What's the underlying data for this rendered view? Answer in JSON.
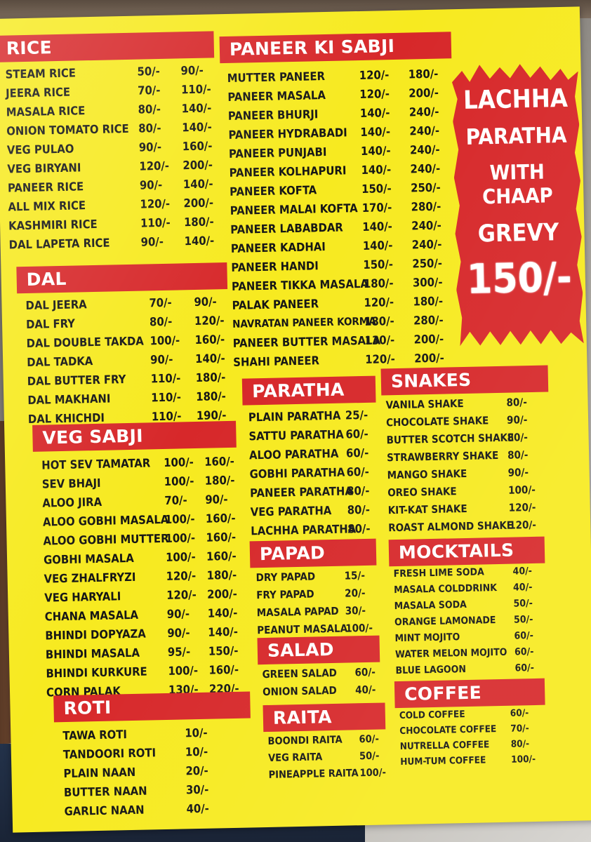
{
  "rice": {
    "title": "RICE",
    "items": [
      {
        "name": "STEAM RICE",
        "p1": "50/-",
        "p2": "90/-"
      },
      {
        "name": "JEERA RICE",
        "p1": "70/-",
        "p2": "110/-"
      },
      {
        "name": "MASALA RICE",
        "p1": "80/-",
        "p2": "140/-"
      },
      {
        "name": "ONION TOMATO RICE",
        "p1": "80/-",
        "p2": "140/-"
      },
      {
        "name": "VEG PULAO",
        "p1": "90/-",
        "p2": "160/-"
      },
      {
        "name": "VEG BIRYANI",
        "p1": "120/-",
        "p2": "200/-"
      },
      {
        "name": "PANEER RICE",
        "p1": "90/-",
        "p2": "140/-"
      },
      {
        "name": "ALL MIX RICE",
        "p1": "120/-",
        "p2": "200/-"
      },
      {
        "name": "KASHMIRI RICE",
        "p1": "110/-",
        "p2": "180/-"
      },
      {
        "name": "DAL LAPETA RICE",
        "p1": "90/-",
        "p2": "140/-"
      }
    ]
  },
  "dal": {
    "title": "DAL",
    "items": [
      {
        "name": "DAL JEERA",
        "p1": "70/-",
        "p2": "90/-"
      },
      {
        "name": "DAL FRY",
        "p1": "80/-",
        "p2": "120/-"
      },
      {
        "name": "DAL DOUBLE TAKDA",
        "p1": "100/-",
        "p2": "160/-"
      },
      {
        "name": "DAL TADKA",
        "p1": "90/-",
        "p2": "140/-"
      },
      {
        "name": "DAL BUTTER FRY",
        "p1": "110/-",
        "p2": "180/-"
      },
      {
        "name": "DAL MAKHANI",
        "p1": "110/-",
        "p2": "180/-"
      },
      {
        "name": "DAL KHICHDI",
        "p1": "110/-",
        "p2": "190/-"
      }
    ]
  },
  "veg_sabji": {
    "title": "VEG SABJI",
    "items": [
      {
        "name": "HOT SEV TAMATAR",
        "p1": "100/-",
        "p2": "160/-"
      },
      {
        "name": "SEV BHAJI",
        "p1": "100/-",
        "p2": "180/-"
      },
      {
        "name": "ALOO JIRA",
        "p1": "70/-",
        "p2": "90/-"
      },
      {
        "name": "ALOO GOBHI MASALA",
        "p1": "100/-",
        "p2": "160/-"
      },
      {
        "name": "ALOO GOBHI MUTTER",
        "p1": "100/-",
        "p2": "160/-"
      },
      {
        "name": "GOBHI MASALA",
        "p1": "100/-",
        "p2": "160/-"
      },
      {
        "name": "VEG ZHALFRYZI",
        "p1": "120/-",
        "p2": "180/-"
      },
      {
        "name": "VEG HARYALI",
        "p1": "120/-",
        "p2": "200/-"
      },
      {
        "name": "CHANA MASALA",
        "p1": "90/-",
        "p2": "140/-"
      },
      {
        "name": "BHINDI DOPYAZA",
        "p1": "90/-",
        "p2": "140/-"
      },
      {
        "name": "BHINDI MASALA",
        "p1": "95/-",
        "p2": "150/-"
      },
      {
        "name": "BHINDI KURKURE",
        "p1": "100/-",
        "p2": "160/-"
      },
      {
        "name": "CORN PALAK",
        "p1": "130/-",
        "p2": "220/-"
      }
    ]
  },
  "roti": {
    "title": "ROTI",
    "items": [
      {
        "name": "TAWA ROTI",
        "p1": "10/-"
      },
      {
        "name": "TANDOORI ROTI",
        "p1": "10/-"
      },
      {
        "name": "PLAIN NAAN",
        "p1": "20/-"
      },
      {
        "name": "BUTTER NAAN",
        "p1": "30/-"
      },
      {
        "name": "GARLIC NAAN",
        "p1": "40/-"
      }
    ]
  },
  "paneer": {
    "title": "PANEER KI SABJI",
    "items": [
      {
        "name": "MUTTER PANEER",
        "p1": "120/-",
        "p2": "180/-"
      },
      {
        "name": "PANEER MASALA",
        "p1": "120/-",
        "p2": "200/-"
      },
      {
        "name": "PANEER BHURJI",
        "p1": "140/-",
        "p2": "240/-"
      },
      {
        "name": "PANEER HYDRABADI",
        "p1": "140/-",
        "p2": "240/-"
      },
      {
        "name": "PANEER PUNJABI",
        "p1": "140/-",
        "p2": "240/-"
      },
      {
        "name": "PANEER KOLHAPURI",
        "p1": "140/-",
        "p2": "240/-"
      },
      {
        "name": "PANEER KOFTA",
        "p1": "150/-",
        "p2": "250/-"
      },
      {
        "name": "PANEER MALAI KOFTA",
        "p1": "170/-",
        "p2": "280/-"
      },
      {
        "name": "PANEER LABABDAR",
        "p1": "140/-",
        "p2": "240/-"
      },
      {
        "name": "PANEER KADHAI",
        "p1": "140/-",
        "p2": "240/-"
      },
      {
        "name": "PANEER HANDI",
        "p1": "150/-",
        "p2": "250/-"
      },
      {
        "name": "PANEER TIKKA MASALA",
        "p1": "180/-",
        "p2": "300/-"
      },
      {
        "name": "PALAK PANEER",
        "p1": "120/-",
        "p2": "180/-"
      },
      {
        "name": "NAVRATAN PANEER KORMA",
        "p1": "180/-",
        "p2": "280/-"
      },
      {
        "name": "PANEER BUTTER MASALA",
        "p1": "130/-",
        "p2": "200/-"
      },
      {
        "name": "SHAHI PANEER",
        "p1": "120/-",
        "p2": "200/-"
      }
    ]
  },
  "promo": {
    "line1": "LACHHA",
    "line2": "PARATHA",
    "line3": "WITH CHAAP",
    "line4": "GREVY",
    "price": "150/-"
  },
  "paratha": {
    "title": "PARATHA",
    "items": [
      {
        "name": "PLAIN PARATHA",
        "p1": "25/-"
      },
      {
        "name": "SATTU PARATHA",
        "p1": "60/-"
      },
      {
        "name": "ALOO PARATHA",
        "p1": "60/-"
      },
      {
        "name": "GOBHI PARATHA",
        "p1": "60/-"
      },
      {
        "name": "PANEER PARATHA",
        "p1": "80/-"
      },
      {
        "name": "VEG PARATHA",
        "p1": "80/-"
      },
      {
        "name": "LACHHA PARATHA",
        "p1": "80/-"
      }
    ]
  },
  "papad": {
    "title": "PAPAD",
    "items": [
      {
        "name": "DRY PAPAD",
        "p1": "15/-"
      },
      {
        "name": "FRY PAPAD",
        "p1": "20/-"
      },
      {
        "name": "MASALA PAPAD",
        "p1": "30/-"
      },
      {
        "name": "PEANUT MASALA",
        "p1": "100/-"
      }
    ]
  },
  "salad": {
    "title": "SALAD",
    "items": [
      {
        "name": "GREEN SALAD",
        "p1": "60/-"
      },
      {
        "name": "ONION SALAD",
        "p1": "40/-"
      }
    ]
  },
  "raita": {
    "title": "RAITA",
    "items": [
      {
        "name": "BOONDI RAITA",
        "p1": "60/-"
      },
      {
        "name": "VEG RAITA",
        "p1": "50/-"
      },
      {
        "name": "PINEAPPLE RAITA",
        "p1": "100/-"
      }
    ]
  },
  "shakes": {
    "title": "SNAKES",
    "items": [
      {
        "name": "VANILA SHAKE",
        "p1": "80/-"
      },
      {
        "name": "CHOCOLATE SHAKE",
        "p1": "90/-"
      },
      {
        "name": "BUTTER SCOTCH SHAKE",
        "p1": "80/-"
      },
      {
        "name": "STRAWBERRY SHAKE",
        "p1": "80/-"
      },
      {
        "name": "MANGO SHAKE",
        "p1": "90/-"
      },
      {
        "name": "OREO SHAKE",
        "p1": "100/-"
      },
      {
        "name": "KIT-KAT SHAKE",
        "p1": "120/-"
      },
      {
        "name": "ROAST ALMOND SHAKE",
        "p1": "120/-"
      }
    ]
  },
  "mocktails": {
    "title": "MOCKTAILS",
    "items": [
      {
        "name": "FRESH LIME SODA",
        "p1": "40/-"
      },
      {
        "name": "MASALA COLDDRINK",
        "p1": "40/-"
      },
      {
        "name": "MASALA SODA",
        "p1": "50/-"
      },
      {
        "name": "ORANGE LAMONADE",
        "p1": "50/-"
      },
      {
        "name": "MINT MOJITO",
        "p1": "60/-"
      },
      {
        "name": "WATER MELON MOJITO",
        "p1": "60/-"
      },
      {
        "name": "BLUE LAGOON",
        "p1": "60/-"
      }
    ]
  },
  "coffee": {
    "title": "COFFEE",
    "items": [
      {
        "name": "COLD COFFEE",
        "p1": "60/-"
      },
      {
        "name": "CHOCOLATE COFFEE",
        "p1": "70/-"
      },
      {
        "name": "NUTRELLA COFFEE",
        "p1": "80/-"
      },
      {
        "name": "HUM-TUM COFFEE",
        "p1": "100/-"
      }
    ]
  },
  "colors": {
    "sheet": "#f7ea20",
    "header": "#d7282a",
    "text": "#151515"
  }
}
